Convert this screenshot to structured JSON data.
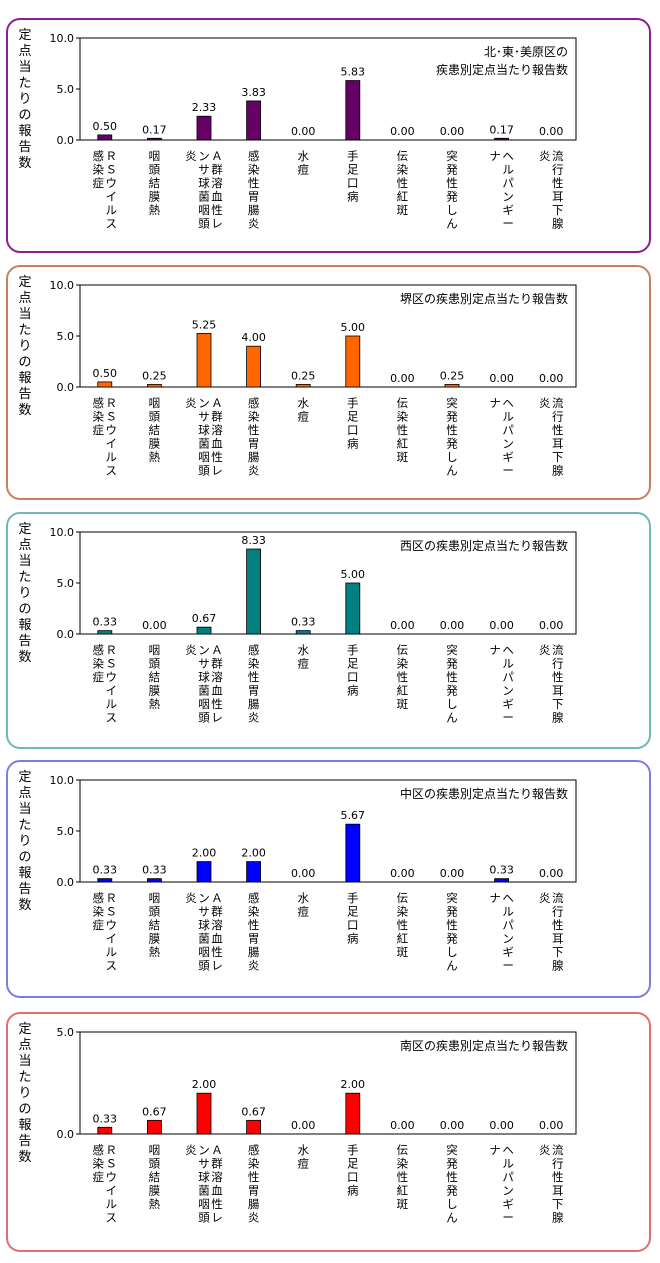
{
  "y_axis_label": "定点当たりの報告数",
  "categories": [
    "ＲＳウイルス感染症",
    "咽頭結膜熱",
    "Ａ群溶血性レンサ球菌咽頭炎",
    "感染性胃腸炎",
    "水痘",
    "手足口病",
    "伝染性紅斑",
    "突発性発しん",
    "ヘルパンギーナ",
    "流行性耳下腺炎"
  ],
  "chart_data": [
    {
      "type": "bar",
      "title": "北･東･美原区の疾患別定点当たり報告数",
      "ylabel": "定点当たりの報告数",
      "ylim": [
        0,
        10
      ],
      "yticks": [
        "0.0",
        "5.0",
        "10.0"
      ],
      "color": "#660066",
      "border_color": "#8b1f8b",
      "values": [
        0.5,
        0.17,
        2.33,
        3.83,
        0.0,
        5.83,
        0.0,
        0.0,
        0.17,
        0.0
      ],
      "value_labels": [
        "0.50",
        "0.17",
        "2.33",
        "3.83",
        "0.00",
        "5.83",
        "0.00",
        "0.00",
        "0.17",
        "0.00"
      ]
    },
    {
      "type": "bar",
      "title": "堺区の疾患別定点当たり報告数",
      "ylabel": "定点当たりの報告数",
      "ylim": [
        0,
        10
      ],
      "yticks": [
        "0.0",
        "5.0",
        "10.0"
      ],
      "color": "#ff6600",
      "border_color": "#c8805e",
      "values": [
        0.5,
        0.25,
        5.25,
        4.0,
        0.25,
        5.0,
        0.0,
        0.25,
        0.0,
        0.0
      ],
      "value_labels": [
        "0.50",
        "0.25",
        "5.25",
        "4.00",
        "0.25",
        "5.00",
        "0.00",
        "0.25",
        "0.00",
        "0.00"
      ]
    },
    {
      "type": "bar",
      "title": "西区の疾患別定点当たり報告数",
      "ylabel": "定点当たりの報告数",
      "ylim": [
        0,
        10
      ],
      "yticks": [
        "0.0",
        "5.0",
        "10.0"
      ],
      "color": "#008080",
      "border_color": "#6fb8b8",
      "values": [
        0.33,
        0.0,
        0.67,
        8.33,
        0.33,
        5.0,
        0.0,
        0.0,
        0.0,
        0.0
      ],
      "value_labels": [
        "0.33",
        "0.00",
        "0.67",
        "8.33",
        "0.33",
        "5.00",
        "0.00",
        "0.00",
        "0.00",
        "0.00"
      ]
    },
    {
      "type": "bar",
      "title": "中区の疾患別定点当たり報告数",
      "ylabel": "定点当たりの報告数",
      "ylim": [
        0,
        10
      ],
      "yticks": [
        "0.0",
        "5.0",
        "10.0"
      ],
      "color": "#0000ff",
      "border_color": "#7d7de0",
      "values": [
        0.33,
        0.33,
        2.0,
        2.0,
        0.0,
        5.67,
        0.0,
        0.0,
        0.33,
        0.0
      ],
      "value_labels": [
        "0.33",
        "0.33",
        "2.00",
        "2.00",
        "0.00",
        "5.67",
        "0.00",
        "0.00",
        "0.33",
        "0.00"
      ]
    },
    {
      "type": "bar",
      "title": "南区の疾患別定点当たり報告数",
      "ylabel": "定点当たりの報告数",
      "ylim": [
        0,
        5
      ],
      "yticks": [
        "0.0",
        "5.0"
      ],
      "color": "#ff0000",
      "border_color": "#e07070",
      "values": [
        0.33,
        0.67,
        2.0,
        0.67,
        0.0,
        2.0,
        0.0,
        0.0,
        0.0,
        0.0
      ],
      "value_labels": [
        "0.33",
        "0.67",
        "2.00",
        "0.67",
        "0.00",
        "2.00",
        "0.00",
        "0.00",
        "0.00",
        "0.00"
      ]
    }
  ]
}
